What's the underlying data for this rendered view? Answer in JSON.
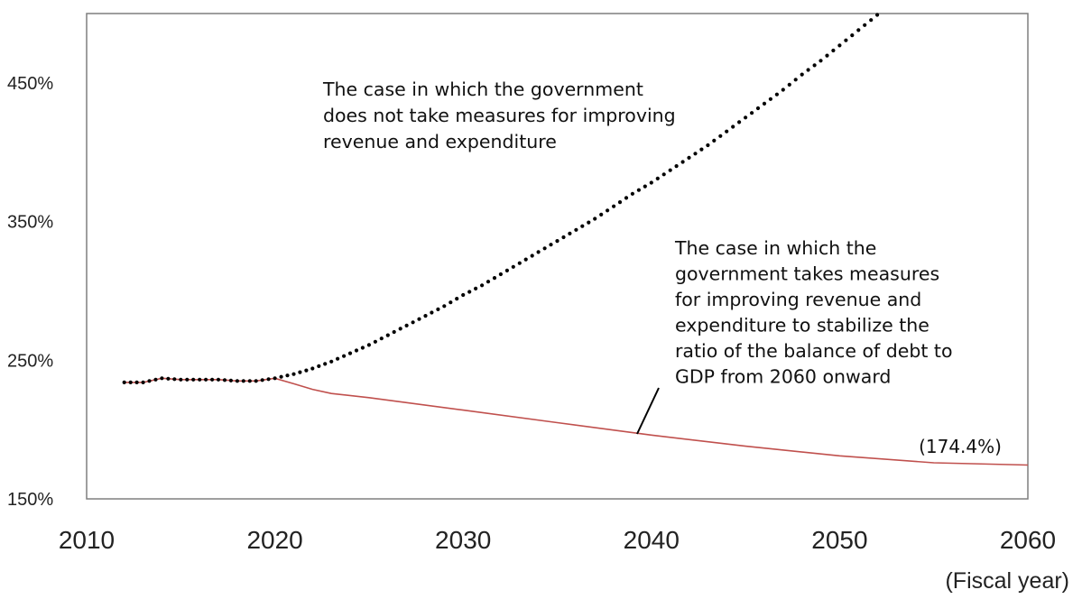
{
  "chart_data": {
    "type": "line",
    "title": "",
    "xlabel": "(Fiscal year)",
    "ylabel": "",
    "xlim": [
      2010,
      2060
    ],
    "ylim": [
      150,
      500
    ],
    "x_ticks": [
      2010,
      2020,
      2030,
      2040,
      2050,
      2060
    ],
    "x_tick_labels": [
      "2010",
      "2020",
      "2030",
      "2040",
      "2050",
      "2060"
    ],
    "y_ticks": [
      150,
      250,
      350,
      450
    ],
    "y_tick_labels": [
      "150%",
      "250%",
      "350%",
      "450%"
    ],
    "grid": false,
    "series": [
      {
        "key": "no_measures",
        "style": "dotted",
        "color": "#000000",
        "x": [
          2012,
          2013,
          2014,
          2015,
          2016,
          2017,
          2018,
          2019,
          2020,
          2021,
          2022,
          2023,
          2024,
          2025,
          2026,
          2027,
          2028,
          2029,
          2030,
          2031,
          2032,
          2033,
          2034,
          2035,
          2036,
          2037,
          2038,
          2039,
          2040,
          2041,
          2042,
          2043,
          2044,
          2045,
          2046,
          2047,
          2048,
          2049,
          2050,
          2051,
          2052,
          2053
        ],
        "values": [
          234,
          234,
          237,
          236,
          236,
          236,
          235,
          235,
          237,
          240,
          244,
          249,
          255,
          261,
          268,
          275,
          282,
          289,
          297,
          304,
          312,
          320,
          328,
          336,
          344,
          352,
          361,
          370,
          378,
          387,
          396,
          405,
          415,
          425,
          435,
          445,
          456,
          466,
          477,
          488,
          499,
          510
        ]
      },
      {
        "key": "with_measures",
        "style": "solid",
        "color": "#c0504d",
        "x": [
          2012,
          2013,
          2014,
          2015,
          2016,
          2017,
          2018,
          2019,
          2020,
          2021,
          2022,
          2023,
          2025,
          2030,
          2035,
          2040,
          2045,
          2050,
          2055,
          2060
        ],
        "values": [
          234,
          234,
          237,
          236,
          236,
          236,
          235,
          235,
          237,
          233,
          229,
          226,
          223,
          214,
          205,
          196,
          188,
          181,
          176,
          174.4
        ]
      }
    ],
    "annotations": {
      "no_measures_lines": [
        "The case in which the government",
        "does not take measures for improving",
        "revenue and expenditure"
      ],
      "with_measures_lines": [
        "The case in which the",
        "government takes measures",
        "for improving revenue and",
        "expenditure to stabilize the",
        "ratio of the balance of debt to",
        "GDP from 2060 onward"
      ],
      "end_value_label": "(174.4%)"
    }
  }
}
